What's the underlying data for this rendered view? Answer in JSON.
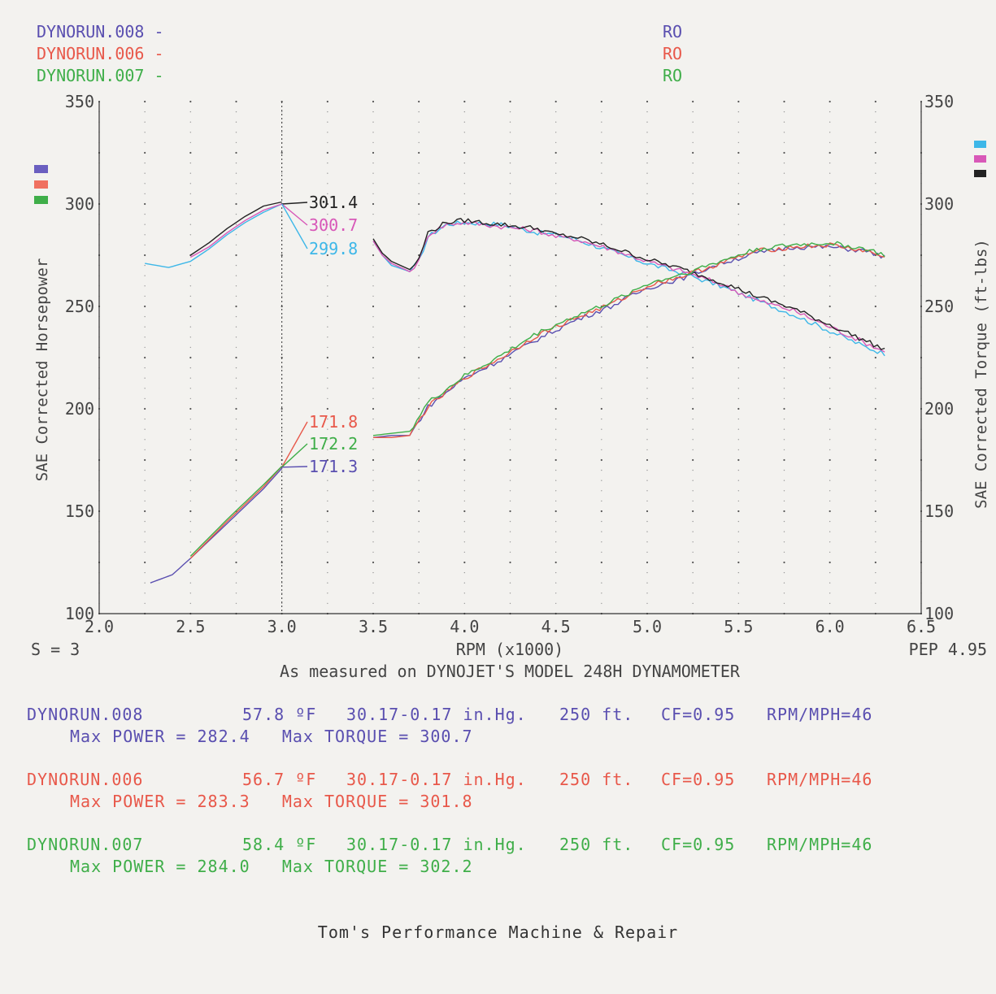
{
  "header": {
    "runs": [
      {
        "name": "DYNORUN.008",
        "dash": "-",
        "code": "RO",
        "color": "#5a4fb0"
      },
      {
        "name": "DYNORUN.006",
        "dash": "-",
        "code": "RO",
        "color": "#e8584a"
      },
      {
        "name": "DYNORUN.007",
        "dash": "-",
        "code": "RO",
        "color": "#3fae49"
      }
    ]
  },
  "left_swatches": [
    "#6a5fc0",
    "#f07060",
    "#3fae49"
  ],
  "right_swatches": [
    "#3db7e8",
    "#d858b8",
    "#222222"
  ],
  "axes": {
    "y_left_label": "SAE Corrected Horsepower",
    "y_right_label": "SAE Corrected Torque (ft-lbs)",
    "x_label": "RPM (x1000)",
    "x_ticks": [
      "2.0",
      "2.5",
      "3.0",
      "3.5",
      "4.0",
      "4.5",
      "5.0",
      "5.5",
      "6.0",
      "6.5"
    ],
    "y_ticks": [
      "100",
      "150",
      "200",
      "250",
      "300",
      "350"
    ],
    "left_corner": "S = 3",
    "right_corner": "PEP 4.95",
    "measured_note": "As measured on DYNOJET'S MODEL 248H DYNAMOMETER"
  },
  "chart_data": {
    "type": "line",
    "xlabel": "RPM (x1000)",
    "ylabel_left": "SAE Corrected Horsepower",
    "ylabel_right": "SAE Corrected Torque (ft-lbs)",
    "xlim": [
      2.0,
      6.5
    ],
    "ylim": [
      100,
      350
    ],
    "grid": true,
    "cursor_x": 3.0,
    "cursor_readouts": {
      "torque": [
        {
          "value": "301.4",
          "color": "#222222"
        },
        {
          "value": "300.7",
          "color": "#d858b8"
        },
        {
          "value": "299.8",
          "color": "#3db7e8"
        }
      ],
      "power": [
        {
          "value": "171.8",
          "color": "#e8584a"
        },
        {
          "value": "172.2",
          "color": "#3fae49"
        },
        {
          "value": "171.3",
          "color": "#5a4fb0"
        }
      ]
    },
    "series": [
      {
        "group": "torque",
        "color": "#3db7e8",
        "x": [
          2.25,
          2.38,
          2.5,
          2.6,
          2.7,
          2.8,
          2.9,
          3.0,
          3.5,
          3.55,
          3.6,
          3.7,
          3.75,
          3.8,
          3.9,
          4.0,
          4.2,
          4.4,
          4.5,
          4.6,
          4.8,
          5.0,
          5.2,
          5.4,
          5.6,
          5.8,
          6.0,
          6.2,
          6.3
        ],
        "y": [
          271,
          269,
          272,
          278,
          285,
          291,
          296,
          300,
          282,
          275,
          270,
          267,
          272,
          284,
          290,
          291,
          290,
          286,
          285,
          283,
          277,
          271,
          266,
          260,
          253,
          246,
          238,
          230,
          227
        ]
      },
      {
        "group": "torque",
        "color": "#d858b8",
        "x": [
          2.5,
          2.6,
          2.7,
          2.8,
          2.9,
          3.0,
          3.5,
          3.55,
          3.6,
          3.7,
          3.75,
          3.8,
          3.9,
          4.0,
          4.2,
          4.4,
          4.5,
          4.6,
          4.8,
          5.0,
          5.2,
          5.4,
          5.6,
          5.8,
          6.0,
          6.2,
          6.3
        ],
        "y": [
          274,
          279,
          286,
          292,
          297,
          300,
          282,
          275,
          271,
          267,
          272,
          285,
          290,
          291,
          289,
          287,
          284,
          283,
          278,
          272,
          267,
          261,
          253,
          248,
          240,
          232,
          228
        ]
      },
      {
        "group": "torque",
        "color": "#222222",
        "x": [
          2.5,
          2.6,
          2.7,
          2.8,
          2.9,
          3.0,
          3.5,
          3.55,
          3.6,
          3.7,
          3.75,
          3.8,
          3.9,
          4.0,
          4.2,
          4.4,
          4.5,
          4.6,
          4.8,
          5.0,
          5.2,
          5.4,
          5.6,
          5.8,
          6.0,
          6.2,
          6.3
        ],
        "y": [
          275,
          281,
          288,
          294,
          299,
          301,
          283,
          276,
          272,
          268,
          273,
          286,
          291,
          292,
          290,
          288,
          285,
          284,
          279,
          273,
          268,
          262,
          255,
          249,
          241,
          233,
          229
        ]
      },
      {
        "group": "power",
        "color": "#5a4fb0",
        "x": [
          2.28,
          2.4,
          2.5,
          2.7,
          2.9,
          3.0,
          3.5,
          3.6,
          3.7,
          3.8,
          4.0,
          4.2,
          4.4,
          4.6,
          4.8,
          5.0,
          5.2,
          5.4,
          5.6,
          5.8,
          6.0,
          6.2,
          6.3
        ],
        "y": [
          115,
          119,
          127,
          144,
          161,
          171,
          186,
          187,
          187,
          201,
          215,
          224,
          234,
          243,
          250,
          259,
          264,
          271,
          276,
          279,
          279,
          277,
          274
        ]
      },
      {
        "group": "power",
        "color": "#e8584a",
        "x": [
          2.5,
          2.7,
          2.9,
          3.0,
          3.5,
          3.6,
          3.7,
          3.8,
          4.0,
          4.2,
          4.4,
          4.6,
          4.8,
          5.0,
          5.2,
          5.4,
          5.6,
          5.8,
          6.0,
          6.2,
          6.3
        ],
        "y": [
          127,
          145,
          162,
          172,
          186,
          186,
          187,
          201,
          215,
          225,
          236,
          244,
          251,
          260,
          265,
          271,
          277,
          279,
          280,
          277,
          274
        ]
      },
      {
        "group": "power",
        "color": "#3fae49",
        "x": [
          2.5,
          2.7,
          2.9,
          3.0,
          3.5,
          3.6,
          3.7,
          3.8,
          4.0,
          4.2,
          4.4,
          4.6,
          4.8,
          5.0,
          5.2,
          5.4,
          5.6,
          5.8,
          6.0,
          6.2,
          6.3
        ],
        "y": [
          128,
          146,
          163,
          172,
          187,
          188,
          189,
          203,
          216,
          226,
          237,
          245,
          252,
          261,
          266,
          272,
          278,
          280,
          281,
          278,
          275
        ]
      }
    ]
  },
  "run_details": [
    {
      "name": "DYNORUN.008",
      "temp": "57.8 ºF",
      "baro": "30.17-0.17 in.Hg.",
      "alt": "250 ft.",
      "cf": "CF=0.95",
      "rpm_mph": "RPM/MPH=46",
      "max_line": "Max POWER = 282.4   Max TORQUE = 300.7",
      "color": "#5a4fb0"
    },
    {
      "name": "DYNORUN.006",
      "temp": "56.7 ºF",
      "baro": "30.17-0.17 in.Hg.",
      "alt": "250 ft.",
      "cf": "CF=0.95",
      "rpm_mph": "RPM/MPH=46",
      "max_line": "Max POWER = 283.3   Max TORQUE = 301.8",
      "color": "#e8584a"
    },
    {
      "name": "DYNORUN.007",
      "temp": "58.4 ºF",
      "baro": "30.17-0.17 in.Hg.",
      "alt": "250 ft.",
      "cf": "CF=0.95",
      "rpm_mph": "RPM/MPH=46",
      "max_line": "Max POWER = 284.0   Max TORQUE = 302.2",
      "color": "#3fae49"
    }
  ],
  "footer": "Tom's Performance Machine & Repair"
}
